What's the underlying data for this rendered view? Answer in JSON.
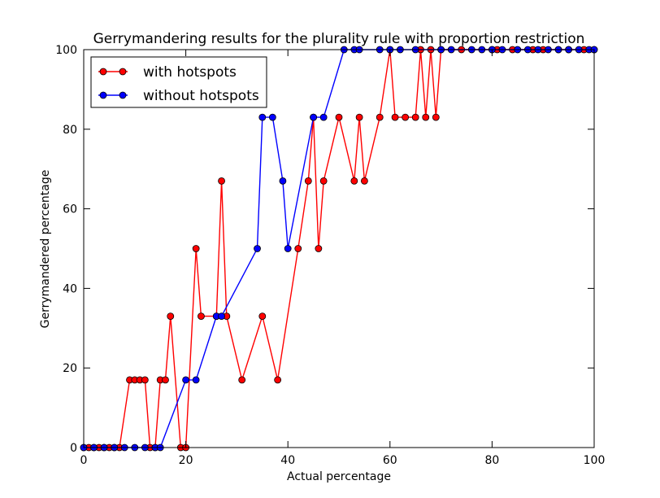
{
  "chart_data": {
    "type": "line",
    "title": "Gerrymandering results for the plurality rule with proportion restriction",
    "xlabel": "Actual percentage",
    "ylabel": "Gerrymandered percentage",
    "xlim": [
      0,
      100
    ],
    "ylim": [
      0,
      100
    ],
    "xticks": [
      "0",
      "20",
      "40",
      "60",
      "80",
      "100"
    ],
    "yticks": [
      "0",
      "20",
      "40",
      "60",
      "80",
      "100"
    ],
    "grid": false,
    "legend_position": "top-left",
    "series": [
      {
        "name": "with hotspots",
        "color": "#ff0000",
        "points": [
          [
            0,
            0
          ],
          [
            1,
            0
          ],
          [
            2,
            0
          ],
          [
            3,
            0
          ],
          [
            4,
            0
          ],
          [
            5,
            0
          ],
          [
            6,
            0
          ],
          [
            7,
            0
          ],
          [
            9,
            17
          ],
          [
            10,
            17
          ],
          [
            11,
            17
          ],
          [
            12,
            17
          ],
          [
            13,
            0
          ],
          [
            14,
            0
          ],
          [
            15,
            17
          ],
          [
            16,
            17
          ],
          [
            17,
            33
          ],
          [
            19,
            0
          ],
          [
            20,
            0
          ],
          [
            22,
            50
          ],
          [
            23,
            33
          ],
          [
            26,
            33
          ],
          [
            27,
            67
          ],
          [
            28,
            33
          ],
          [
            31,
            17
          ],
          [
            35,
            33
          ],
          [
            38,
            17
          ],
          [
            42,
            50
          ],
          [
            44,
            67
          ],
          [
            45,
            83
          ],
          [
            46,
            50
          ],
          [
            47,
            67
          ],
          [
            50,
            83
          ],
          [
            53,
            67
          ],
          [
            54,
            83
          ],
          [
            55,
            67
          ],
          [
            58,
            83
          ],
          [
            60,
            100
          ],
          [
            61,
            83
          ],
          [
            63,
            83
          ],
          [
            65,
            83
          ],
          [
            66,
            100
          ],
          [
            67,
            83
          ],
          [
            68,
            100
          ],
          [
            69,
            83
          ],
          [
            70,
            100
          ],
          [
            74,
            100
          ],
          [
            80,
            100
          ],
          [
            81,
            100
          ],
          [
            84,
            100
          ],
          [
            88,
            100
          ],
          [
            90,
            100
          ],
          [
            93,
            100
          ],
          [
            95,
            100
          ],
          [
            98,
            100
          ],
          [
            100,
            100
          ]
        ]
      },
      {
        "name": "without hotspots",
        "color": "#0000ff",
        "points": [
          [
            0,
            0
          ],
          [
            2,
            0
          ],
          [
            4,
            0
          ],
          [
            6,
            0
          ],
          [
            8,
            0
          ],
          [
            10,
            0
          ],
          [
            12,
            0
          ],
          [
            14,
            0
          ],
          [
            15,
            0
          ],
          [
            20,
            17
          ],
          [
            22,
            17
          ],
          [
            26,
            33
          ],
          [
            27,
            33
          ],
          [
            34,
            50
          ],
          [
            35,
            83
          ],
          [
            37,
            83
          ],
          [
            39,
            67
          ],
          [
            40,
            50
          ],
          [
            45,
            83
          ],
          [
            47,
            83
          ],
          [
            51,
            100
          ],
          [
            53,
            100
          ],
          [
            54,
            100
          ],
          [
            58,
            100
          ],
          [
            60,
            100
          ],
          [
            62,
            100
          ],
          [
            65,
            100
          ],
          [
            70,
            100
          ],
          [
            72,
            100
          ],
          [
            76,
            100
          ],
          [
            78,
            100
          ],
          [
            80,
            100
          ],
          [
            82,
            100
          ],
          [
            85,
            100
          ],
          [
            87,
            100
          ],
          [
            89,
            100
          ],
          [
            91,
            100
          ],
          [
            93,
            100
          ],
          [
            95,
            100
          ],
          [
            97,
            100
          ],
          [
            99,
            100
          ],
          [
            100,
            100
          ]
        ]
      }
    ]
  }
}
